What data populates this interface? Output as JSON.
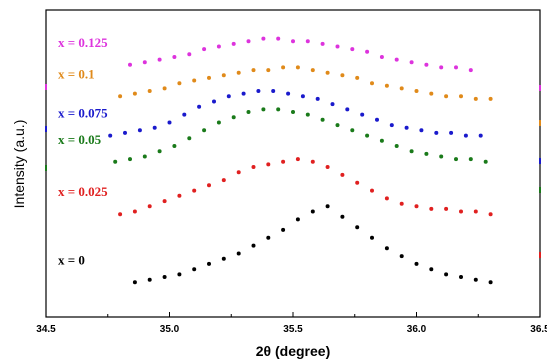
{
  "chart_data": {
    "type": "scatter",
    "title": "",
    "xlabel": "2θ (degree)",
    "ylabel": "Intensity (a.u.)",
    "xlim": [
      34.5,
      36.5
    ],
    "ylim": [
      0,
      100
    ],
    "xticks": [
      34.5,
      35.0,
      35.5,
      36.0,
      36.5
    ],
    "xtick_labels": [
      "34.5",
      "35.0",
      "35.5",
      "36.0",
      "36.5"
    ],
    "grid": false,
    "legend": "none",
    "series": [
      {
        "name": "x = 0",
        "color": "#000000",
        "x": [
          34.86,
          34.92,
          34.98,
          35.04,
          35.1,
          35.16,
          35.22,
          35.28,
          35.34,
          35.4,
          35.46,
          35.52,
          35.58,
          35.64,
          35.7,
          35.76,
          35.82,
          35.88,
          35.94,
          36.0,
          36.06,
          36.12,
          36.18,
          36.24,
          36.3
        ],
        "y": [
          6,
          7,
          8,
          9,
          11,
          13,
          15,
          17,
          20,
          23,
          26,
          30,
          33,
          35,
          31,
          27,
          23,
          19,
          16,
          13,
          11,
          9,
          8,
          7,
          6
        ]
      },
      {
        "name": "x = 0.025",
        "color": "#e02020",
        "x": [
          34.8,
          34.86,
          34.92,
          34.98,
          35.04,
          35.1,
          35.16,
          35.22,
          35.28,
          35.34,
          35.4,
          35.46,
          35.52,
          35.58,
          35.64,
          35.7,
          35.76,
          35.82,
          35.88,
          35.94,
          36.0,
          36.06,
          36.12,
          36.18,
          36.24,
          36.3
        ],
        "y": [
          32,
          33,
          35,
          37,
          39,
          41,
          43,
          45,
          48,
          50,
          51,
          52,
          53,
          52,
          50,
          47,
          44,
          41,
          38,
          36,
          35,
          34,
          34,
          33,
          33,
          32
        ]
      },
      {
        "name": "x = 0.05",
        "color": "#1a7a1a",
        "x": [
          34.78,
          34.84,
          34.9,
          34.96,
          35.02,
          35.08,
          35.14,
          35.2,
          35.26,
          35.32,
          35.38,
          35.44,
          35.5,
          35.56,
          35.62,
          35.68,
          35.74,
          35.8,
          35.86,
          35.92,
          35.98,
          36.04,
          36.1,
          36.16,
          36.22,
          36.28
        ],
        "y": [
          52,
          53,
          54,
          56,
          58,
          61,
          64,
          67,
          69,
          71,
          72,
          72,
          71,
          70,
          68,
          66,
          64,
          62,
          60,
          58,
          56,
          55,
          54,
          53,
          53,
          52
        ]
      },
      {
        "name": "x = 0.075",
        "color": "#1a1acc",
        "x": [
          34.76,
          34.82,
          34.88,
          34.94,
          35.0,
          35.06,
          35.12,
          35.18,
          35.24,
          35.3,
          35.36,
          35.42,
          35.48,
          35.54,
          35.6,
          35.66,
          35.72,
          35.78,
          35.84,
          35.9,
          35.96,
          36.02,
          36.08,
          36.14,
          36.2,
          36.26
        ],
        "y": [
          62,
          63,
          64,
          65,
          67,
          70,
          73,
          75,
          77,
          78,
          79,
          79,
          78,
          77,
          76,
          74,
          72,
          70,
          68,
          66,
          65,
          64,
          63,
          63,
          62,
          62
        ]
      },
      {
        "name": "x = 0.1",
        "color": "#e08a1a",
        "x": [
          34.8,
          34.86,
          34.92,
          34.98,
          35.04,
          35.1,
          35.16,
          35.22,
          35.28,
          35.34,
          35.4,
          35.46,
          35.52,
          35.58,
          35.64,
          35.7,
          35.76,
          35.82,
          35.88,
          35.94,
          36.0,
          36.06,
          36.12,
          36.18,
          36.24,
          36.3
        ],
        "y": [
          77,
          78,
          79,
          80,
          82,
          83,
          84,
          85,
          86,
          87,
          87,
          88,
          88,
          87,
          86,
          85,
          84,
          82,
          81,
          80,
          79,
          78,
          77,
          77,
          76,
          76
        ]
      },
      {
        "name": "x = 0.125",
        "color": "#dd33dd",
        "x": [
          34.84,
          34.9,
          34.96,
          35.02,
          35.08,
          35.14,
          35.2,
          35.26,
          35.32,
          35.38,
          35.44,
          35.5,
          35.56,
          35.62,
          35.68,
          35.74,
          35.8,
          35.86,
          35.92,
          35.98,
          36.04,
          36.1,
          36.16,
          36.22
        ],
        "y": [
          89,
          90,
          91,
          92,
          93,
          95,
          96,
          97,
          98,
          99,
          99,
          98,
          98,
          97,
          96,
          95,
          94,
          92,
          91,
          90,
          89,
          88,
          88,
          87
        ]
      }
    ]
  }
}
